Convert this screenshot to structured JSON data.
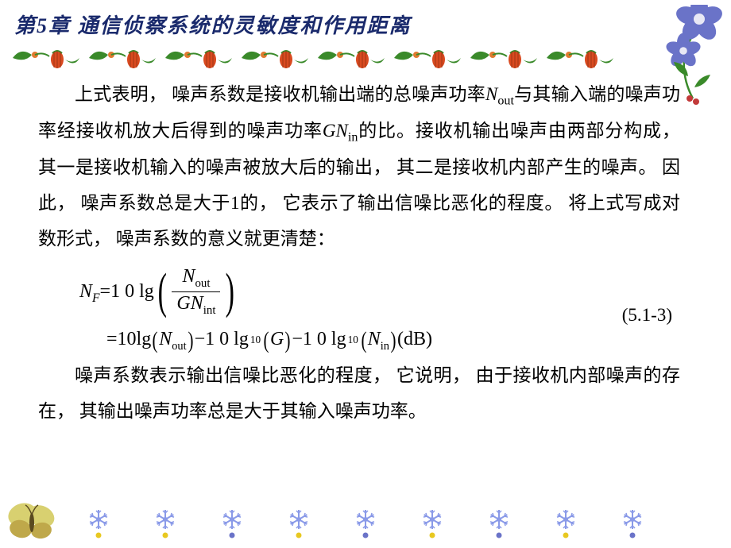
{
  "chapter": {
    "title": "第5章 通信侦察系统的灵敏度和作用距离",
    "title_color": "#1a2a6c",
    "title_fontsize": 26
  },
  "decor_top": {
    "pair_count": 8,
    "leaf_color": "#3a8a2a",
    "bud_color": "#e07a30",
    "lantern_color": "#d94a20"
  },
  "corner_flowers": {
    "petal_color": "#6a73c8",
    "center_color": "#e8e8f5",
    "leaf_color": "#3a8a2a",
    "vine_color": "#3a8a2a",
    "berry_color": "#c23a3a"
  },
  "body": {
    "fontsize": 23,
    "color": "#000000",
    "p1_a": "上式表明， 噪声系数是接收机输出端的总噪声功率",
    "p1_b": "与其输入端的噪声功率经接收机放大后得到的噪声功率",
    "p1_c": "的比。接收机输出噪声由两部分构成， 其一是接收机输入的噪声被放大后的输出， 其二是接收机内部产生的噪声。 因此， 噪声系数总是大于1的， 它表示了输出信噪比恶化的程度。 将上式写成对数形式， 噪声系数的意义就更清楚：",
    "N": "N",
    "out": "out",
    "G": "G",
    "in": "in",
    "p2": "噪声系数表示输出信噪比恶化的程度， 它说明， 由于接收机内部噪声的存在， 其输出噪声功率总是大于其输入噪声功率。"
  },
  "equation": {
    "fontsize": 24,
    "NF": "N",
    "Fsub": "F",
    "eq": " = ",
    "ten_lg": "1 0 lg",
    "tenlg": "10lg",
    "ten_lg_sp": "1 0 lg",
    "base10": "10",
    "Nout_N": "N",
    "Nout_sub": "out",
    "GNint_G": "G",
    "GNint_N": "N",
    "GNint_sub": "int",
    "minus": "−",
    "Nin_N": "N",
    "Nin_sub": "in",
    "unit": " (dB)",
    "number": "(5.1-3)"
  },
  "decor_bottom": {
    "snowflake_count": 9,
    "dot_colors": [
      "#e8c820",
      "#e8c820",
      "#6a73c8",
      "#e8c820",
      "#6a73c8",
      "#e8c820",
      "#6a73c8",
      "#e8c820",
      "#6a73c8"
    ],
    "flake_color": "#8a9ae8"
  },
  "butterfly": {
    "wing1": "#d8d070",
    "wing2": "#bfa84a",
    "body": "#5a4a20"
  }
}
